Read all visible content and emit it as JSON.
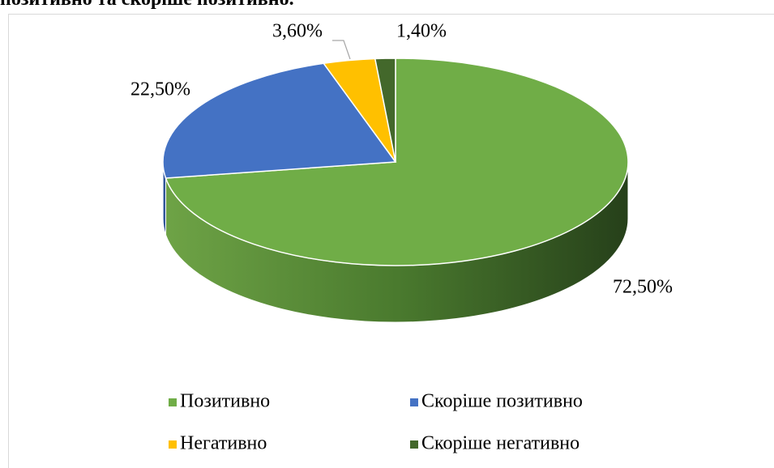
{
  "chart_data": {
    "type": "pie",
    "title": "позитивно та скоріше позитивно.",
    "categories": [
      "Позитивно",
      "Скоріше позитивно",
      "Негативно",
      "Скоріше негативно"
    ],
    "values": [
      72.5,
      22.5,
      3.6,
      1.4
    ],
    "value_labels": [
      "72,50%",
      "22,50%",
      "3,60%",
      "1,40%"
    ],
    "colors": [
      "#70ad47",
      "#4472c4",
      "#ffc000",
      "#43682b"
    ],
    "legend": "bottom"
  }
}
